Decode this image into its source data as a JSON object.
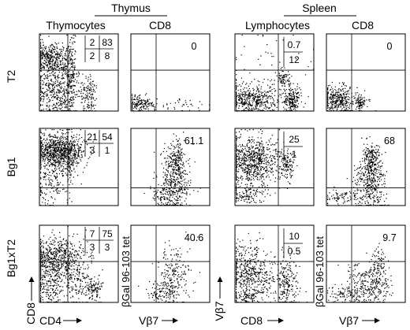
{
  "chart_data": {
    "type": "scatter",
    "groups": [
      {
        "label": "Thymus",
        "columns": [
          0,
          1
        ]
      },
      {
        "label": "Spleen",
        "columns": [
          2,
          3
        ]
      }
    ],
    "column_titles": [
      "Thymocytes",
      "CD8",
      "Lymphocytes",
      "CD8"
    ],
    "row_labels": [
      "T2",
      "Bg1",
      "Bg1xT2"
    ],
    "x_axis_labels": [
      "CD4",
      "Vβ7",
      "CD8",
      "Vβ7"
    ],
    "y_axis_labels": [
      "CD8",
      "βGal 96-103 tet",
      "Vβ7",
      "βGal 96-103 tet"
    ],
    "panels": [
      {
        "row": 0,
        "col": 0,
        "quadrants": [
          "2",
          "83",
          "2",
          "8"
        ]
      },
      {
        "row": 0,
        "col": 1,
        "value": "0"
      },
      {
        "row": 0,
        "col": 2,
        "quadrants": [
          "0.7",
          "12"
        ]
      },
      {
        "row": 0,
        "col": 3,
        "value": "0"
      },
      {
        "row": 1,
        "col": 0,
        "quadrants": [
          "21",
          "54",
          "3",
          "1"
        ]
      },
      {
        "row": 1,
        "col": 1,
        "value": "61.1"
      },
      {
        "row": 1,
        "col": 2,
        "quadrants": [
          "25",
          "1"
        ]
      },
      {
        "row": 1,
        "col": 3,
        "value": "68"
      },
      {
        "row": 2,
        "col": 0,
        "quadrants": [
          "7",
          "75",
          "3",
          "3"
        ]
      },
      {
        "row": 2,
        "col": 1,
        "value": "40.6"
      },
      {
        "row": 2,
        "col": 2,
        "quadrants": [
          "10",
          "0.5"
        ]
      },
      {
        "row": 2,
        "col": 3,
        "value": "9.7"
      }
    ]
  }
}
